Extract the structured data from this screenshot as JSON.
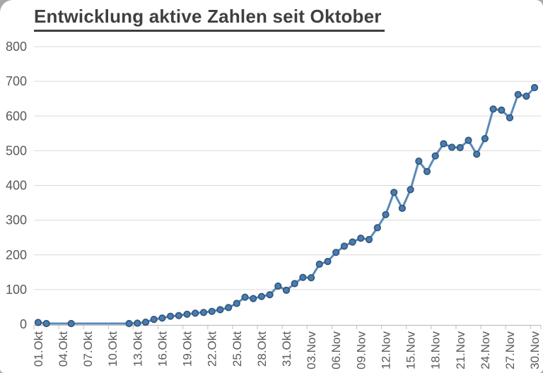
{
  "title": "Entwicklung aktive Zahlen seit Oktober",
  "colors": {
    "line": "#5b8ab8",
    "marker_fill": "#4a7cb0",
    "marker_stroke": "#2f5579",
    "grid": "#d9d9d9",
    "axis": "#bfbfbf",
    "axis_text": "#595959",
    "title_text": "#3f3f3f",
    "panel_bg": "#ffffff",
    "outer_bg": "#a8a8a8"
  },
  "chart_data": {
    "type": "line",
    "title": "Entwicklung aktive Zahlen seit Oktober",
    "legend": "none",
    "grid": "horizontal",
    "x_start": "01.Okt",
    "x_end": "30.Nov",
    "x_total_days": 61,
    "x_tick_every_days": 3,
    "x_tick_labels": [
      "01.Okt",
      "04.Okt",
      "07.Okt",
      "10.Okt",
      "13.Okt",
      "16.Okt",
      "19.Okt",
      "22.Okt",
      "25.Okt",
      "28.Okt",
      "31.Okt",
      "03.Nov",
      "06.Nov",
      "09.Nov",
      "12.Nov",
      "15.Nov",
      "18.Nov",
      "21.Nov",
      "24.Nov",
      "27.Nov",
      "30.Nov"
    ],
    "ylim": [
      0,
      800
    ],
    "ytick_step": 100,
    "y_tick_labels": [
      "0",
      "100",
      "200",
      "300",
      "400",
      "500",
      "600",
      "700",
      "800"
    ],
    "marker": "circle",
    "points": [
      {
        "date": "01.Okt",
        "value": 5
      },
      {
        "date": "02.Okt",
        "value": 2
      },
      {
        "date": "05.Okt",
        "value": 2
      },
      {
        "date": "12.Okt",
        "value": 2
      },
      {
        "date": "13.Okt",
        "value": 3
      },
      {
        "date": "14.Okt",
        "value": 6
      },
      {
        "date": "15.Okt",
        "value": 14
      },
      {
        "date": "16.Okt",
        "value": 18
      },
      {
        "date": "17.Okt",
        "value": 23
      },
      {
        "date": "18.Okt",
        "value": 25
      },
      {
        "date": "19.Okt",
        "value": 29
      },
      {
        "date": "20.Okt",
        "value": 32
      },
      {
        "date": "21.Okt",
        "value": 34
      },
      {
        "date": "22.Okt",
        "value": 37
      },
      {
        "date": "23.Okt",
        "value": 42
      },
      {
        "date": "24.Okt",
        "value": 48
      },
      {
        "date": "25.Okt",
        "value": 60
      },
      {
        "date": "26.Okt",
        "value": 78
      },
      {
        "date": "27.Okt",
        "value": 74
      },
      {
        "date": "28.Okt",
        "value": 80
      },
      {
        "date": "29.Okt",
        "value": 85
      },
      {
        "date": "30.Okt",
        "value": 110
      },
      {
        "date": "31.Okt",
        "value": 98
      },
      {
        "date": "01.Nov",
        "value": 117
      },
      {
        "date": "02.Nov",
        "value": 135
      },
      {
        "date": "03.Nov",
        "value": 134
      },
      {
        "date": "04.Nov",
        "value": 173
      },
      {
        "date": "05.Nov",
        "value": 181
      },
      {
        "date": "06.Nov",
        "value": 207
      },
      {
        "date": "07.Nov",
        "value": 225
      },
      {
        "date": "08.Nov",
        "value": 237
      },
      {
        "date": "09.Nov",
        "value": 248
      },
      {
        "date": "10.Nov",
        "value": 244
      },
      {
        "date": "11.Nov",
        "value": 278
      },
      {
        "date": "12.Nov",
        "value": 316
      },
      {
        "date": "13.Nov",
        "value": 380
      },
      {
        "date": "14.Nov",
        "value": 334
      },
      {
        "date": "15.Nov",
        "value": 388
      },
      {
        "date": "16.Nov",
        "value": 470
      },
      {
        "date": "17.Nov",
        "value": 440
      },
      {
        "date": "18.Nov",
        "value": 485
      },
      {
        "date": "19.Nov",
        "value": 520
      },
      {
        "date": "20.Nov",
        "value": 510
      },
      {
        "date": "21.Nov",
        "value": 509
      },
      {
        "date": "22.Nov",
        "value": 530
      },
      {
        "date": "23.Nov",
        "value": 490
      },
      {
        "date": "24.Nov",
        "value": 535
      },
      {
        "date": "25.Nov",
        "value": 620
      },
      {
        "date": "26.Nov",
        "value": 617
      },
      {
        "date": "27.Nov",
        "value": 595
      },
      {
        "date": "28.Nov",
        "value": 662
      },
      {
        "date": "29.Nov",
        "value": 657
      },
      {
        "date": "30.Nov",
        "value": 682
      }
    ]
  }
}
